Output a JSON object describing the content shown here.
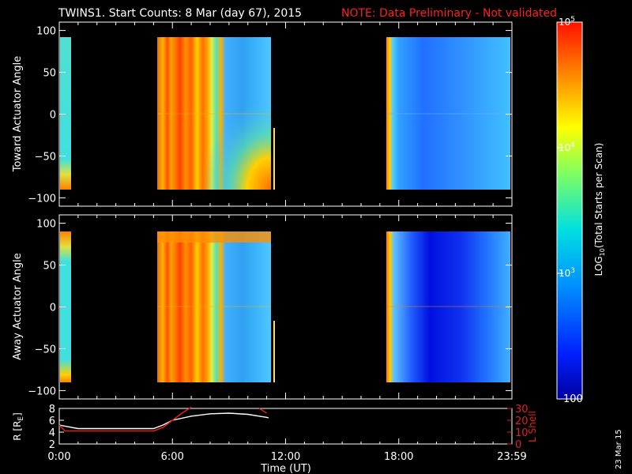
{
  "title": "TWINS1. Start Counts:  8 Mar (day  67), 2015",
  "note": "NOTE: Data Preliminary - Not validated",
  "footer_date": "23 Mar 15",
  "colors": {
    "note": "#ff2020",
    "bg": "#000000",
    "fg": "#ffffff",
    "lshell": "#e02020"
  },
  "chart_data": [
    {
      "type": "heatmap",
      "panel": "top",
      "ylabel": "Toward Actuator Angle",
      "xlim": [
        0,
        24
      ],
      "ylim": [
        -110,
        110
      ],
      "yticks": [
        -100,
        -50,
        0,
        50,
        100
      ],
      "data_y_range": [
        -90,
        90
      ],
      "x_tick_labels": []
    },
    {
      "type": "heatmap",
      "panel": "bottom",
      "ylabel": "Away Actuator Angle",
      "xlim": [
        0,
        24
      ],
      "ylim": [
        -110,
        110
      ],
      "yticks": [
        -100,
        -50,
        0,
        50,
        100
      ],
      "data_y_range": [
        -90,
        90
      ],
      "x_tick_labels": []
    },
    {
      "type": "line",
      "panel": "orbit",
      "ylabel_left": "R [R",
      "ylabel_left_sub": "E",
      "ylabel_left_end": "]",
      "ylabel_right": "L Shell",
      "xlabel": "Time (UT)",
      "xlim": [
        0,
        24
      ],
      "ylim_left": [
        2,
        8
      ],
      "yticks_left": [
        2,
        4,
        6,
        8
      ],
      "ylim_right": [
        0,
        30
      ],
      "yticks_right": [
        0,
        10,
        20,
        30
      ],
      "x_tick_labels": [
        {
          "x": 0,
          "label": "0:00"
        },
        {
          "x": 6,
          "label": "6:00"
        },
        {
          "x": 12,
          "label": "12:00"
        },
        {
          "x": 18,
          "label": "18:00"
        },
        {
          "x": 24,
          "label": "23:59"
        }
      ],
      "series": [
        {
          "axis": "left",
          "x": [
            0,
            0.5,
            1,
            2,
            3,
            4,
            5,
            5.5,
            6,
            7,
            8,
            9,
            10,
            11,
            11.1
          ],
          "y": [
            5.2,
            4.9,
            4.6,
            4.6,
            4.6,
            4.6,
            4.6,
            5.2,
            6.0,
            6.7,
            7.1,
            7.2,
            7.0,
            6.5,
            6.4
          ]
        },
        {
          "axis": "right",
          "x": [
            0,
            0.3,
            1,
            2,
            3,
            4,
            5,
            5.5,
            6,
            6.5,
            7.0
          ],
          "y": [
            16,
            11,
            11,
            11,
            11,
            11,
            11,
            14,
            20,
            26,
            31
          ]
        },
        {
          "axis": "right",
          "x": [
            10.6,
            10.8,
            11.0
          ],
          "y": [
            30,
            28,
            26
          ]
        }
      ]
    }
  ],
  "colorbar": {
    "label": "LOG",
    "label_sub": "10",
    "label_end": "(Total Starts per Scan)",
    "scale": "log",
    "range": [
      100,
      100000
    ],
    "ticks": [
      {
        "value": 100,
        "text": "100"
      },
      {
        "value": 1000,
        "text": "10",
        "sup": "3"
      },
      {
        "value": 10000,
        "text": "10",
        "sup": "4"
      },
      {
        "value": 100000,
        "text": "10",
        "sup": "5"
      }
    ]
  }
}
